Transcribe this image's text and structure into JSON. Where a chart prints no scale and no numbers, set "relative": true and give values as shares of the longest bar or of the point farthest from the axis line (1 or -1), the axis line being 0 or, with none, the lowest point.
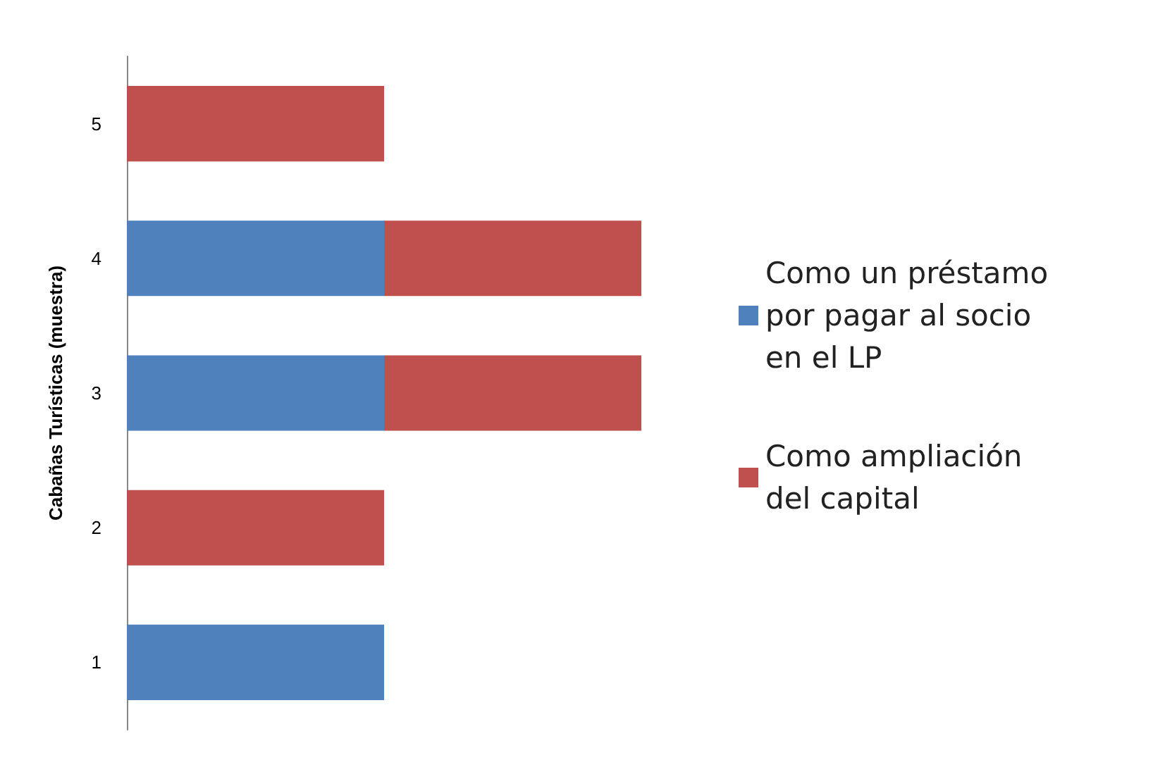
{
  "chart_data": {
    "type": "bar",
    "orientation": "horizontal",
    "stacked": true,
    "relative": true,
    "ylabel": "Cabañas Turísticas (muestra)",
    "categories": [
      "5",
      "4",
      "3",
      "2",
      "1"
    ],
    "series": [
      {
        "name": "Como un préstamo por pagar al socio en el LP",
        "color": "#4f81bd",
        "values": [
          null,
          0.5,
          0.5,
          null,
          0.5
        ]
      },
      {
        "name": "Como ampliación del capital",
        "color": "#c0504d",
        "values": [
          0.5,
          0.5,
          0.5,
          0.5,
          null
        ]
      }
    ],
    "legend": "right"
  }
}
